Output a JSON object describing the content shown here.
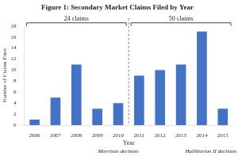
{
  "chart_data": {
    "type": "bar",
    "title": "Figure 1: Secondary Market Claims Filed by Year",
    "x_label": "Year",
    "y_label": "Number of Claims Filed",
    "categories": [
      "2006",
      "2007",
      "2008",
      "2009",
      "2010",
      "2011",
      "2012",
      "2013",
      "2014",
      "2015"
    ],
    "values": [
      1,
      5,
      11,
      3,
      4,
      9,
      10,
      11,
      17,
      3
    ],
    "color": "#4472c4",
    "ylim": [
      0,
      18
    ],
    "yticks": [
      0,
      2,
      4,
      6,
      8,
      10,
      12,
      14,
      16,
      18
    ],
    "grid": false,
    "annotations": [
      {
        "text": "24 claims",
        "categories": [
          "2006",
          "2010"
        ]
      },
      {
        "text": "50 claims",
        "categories": [
          "2011",
          "2015"
        ]
      },
      {
        "text": "Morrison decision",
        "category": "2010"
      },
      {
        "text": "Halliburton II decision",
        "category": "2015"
      }
    ]
  }
}
